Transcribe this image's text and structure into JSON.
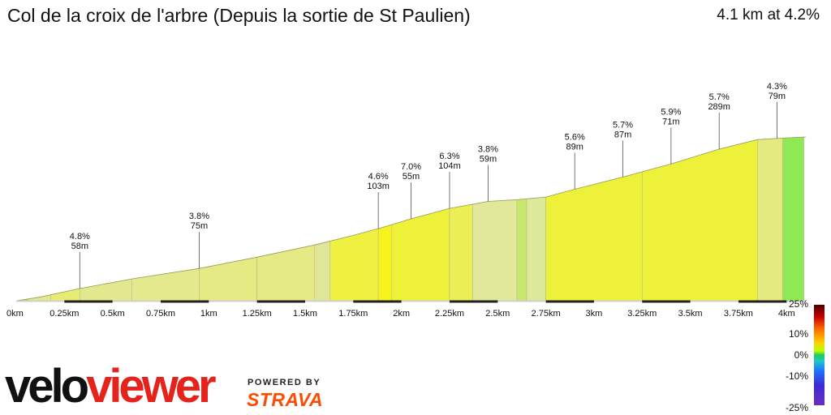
{
  "header": {
    "title": "Col de la croix de l'arbre (Depuis la sortie de St Paulien)",
    "summary": "4.1 km at 4.2%"
  },
  "branding": {
    "logo_part1": "velo",
    "logo_part2": "viewer",
    "powered_by": "POWERED BY",
    "strava": "STRAVA"
  },
  "legend": {
    "labels": [
      "25%",
      "10%",
      "0%",
      "-10%",
      "-25%"
    ]
  },
  "chart_data": {
    "type": "area",
    "title": "Col de la croix de l'arbre (Depuis la sortie de St Paulien)",
    "xlabel": "",
    "ylabel": "",
    "xlim": [
      0,
      4.1
    ],
    "x_ticks": [
      {
        "value": 0,
        "label": "0km"
      },
      {
        "value": 0.25,
        "label": "0.25km"
      },
      {
        "value": 0.5,
        "label": "0.5km"
      },
      {
        "value": 0.75,
        "label": "0.75km"
      },
      {
        "value": 1,
        "label": "1km"
      },
      {
        "value": 1.25,
        "label": "1.25km"
      },
      {
        "value": 1.5,
        "label": "1.5km"
      },
      {
        "value": 1.75,
        "label": "1.75km"
      },
      {
        "value": 2,
        "label": "2km"
      },
      {
        "value": 2.25,
        "label": "2.25km"
      },
      {
        "value": 2.5,
        "label": "2.5km"
      },
      {
        "value": 2.75,
        "label": "2.75km"
      },
      {
        "value": 3,
        "label": "3km"
      },
      {
        "value": 3.25,
        "label": "3.25km"
      },
      {
        "value": 3.5,
        "label": "3.5km"
      },
      {
        "value": 3.75,
        "label": "3.75km"
      },
      {
        "value": 4,
        "label": "4km"
      }
    ],
    "elevation_profile": {
      "distance_km": [
        0,
        0.12,
        0.33,
        0.6,
        0.95,
        1.25,
        1.55,
        1.75,
        1.9,
        2.05,
        2.25,
        2.45,
        2.6,
        2.75,
        2.9,
        3.15,
        3.4,
        3.65,
        3.85,
        4.0,
        4.1
      ],
      "relative_elevation_m": [
        0,
        4,
        14,
        25,
        37,
        50,
        64,
        75,
        84,
        94,
        106,
        114,
        116,
        119,
        128,
        142,
        157,
        174,
        185,
        187,
        188
      ]
    },
    "segments": [
      {
        "start": 0,
        "end": 0.06,
        "color": "#b7cf3e"
      },
      {
        "start": 0.06,
        "end": 0.18,
        "color": "#e2e98b"
      },
      {
        "start": 0.18,
        "end": 0.33,
        "color": "#e8ec76"
      },
      {
        "start": 0.33,
        "end": 0.6,
        "color": "#e1e88e"
      },
      {
        "start": 0.6,
        "end": 0.95,
        "color": "#e3e98c"
      },
      {
        "start": 0.95,
        "end": 1.25,
        "color": "#e5ea85"
      },
      {
        "start": 1.25,
        "end": 1.55,
        "color": "#e5ea85"
      },
      {
        "start": 1.55,
        "end": 1.63,
        "color": "#e0e698"
      },
      {
        "start": 1.63,
        "end": 1.88,
        "color": "#eef140"
      },
      {
        "start": 1.88,
        "end": 1.95,
        "color": "#f6f41c"
      },
      {
        "start": 1.95,
        "end": 2.25,
        "color": "#eef13a"
      },
      {
        "start": 2.25,
        "end": 2.37,
        "color": "#eaef56"
      },
      {
        "start": 2.37,
        "end": 2.6,
        "color": "#e2e89a"
      },
      {
        "start": 2.6,
        "end": 2.65,
        "color": "#c7e86c"
      },
      {
        "start": 2.65,
        "end": 2.75,
        "color": "#dce89a"
      },
      {
        "start": 2.75,
        "end": 3.25,
        "color": "#eef13a"
      },
      {
        "start": 3.25,
        "end": 3.85,
        "color": "#eef13a"
      },
      {
        "start": 3.85,
        "end": 3.98,
        "color": "#e4ea80"
      },
      {
        "start": 3.98,
        "end": 4.09,
        "color": "#8ee955"
      }
    ],
    "annotations": [
      {
        "x": 0.33,
        "gradient": "4.8%",
        "length": "58m"
      },
      {
        "x": 0.95,
        "gradient": "3.8%",
        "length": "75m"
      },
      {
        "x": 1.88,
        "gradient": "4.6%",
        "length": "103m"
      },
      {
        "x": 2.05,
        "gradient": "7.0%",
        "length": "55m"
      },
      {
        "x": 2.25,
        "gradient": "6.3%",
        "length": "104m"
      },
      {
        "x": 2.45,
        "gradient": "3.8%",
        "length": "59m"
      },
      {
        "x": 2.9,
        "gradient": "5.6%",
        "length": "89m"
      },
      {
        "x": 3.15,
        "gradient": "5.7%",
        "length": "87m"
      },
      {
        "x": 3.4,
        "gradient": "5.9%",
        "length": "71m"
      },
      {
        "x": 3.65,
        "gradient": "5.7%",
        "length": "289m"
      },
      {
        "x": 3.95,
        "gradient": "4.3%",
        "length": "79m"
      }
    ]
  }
}
